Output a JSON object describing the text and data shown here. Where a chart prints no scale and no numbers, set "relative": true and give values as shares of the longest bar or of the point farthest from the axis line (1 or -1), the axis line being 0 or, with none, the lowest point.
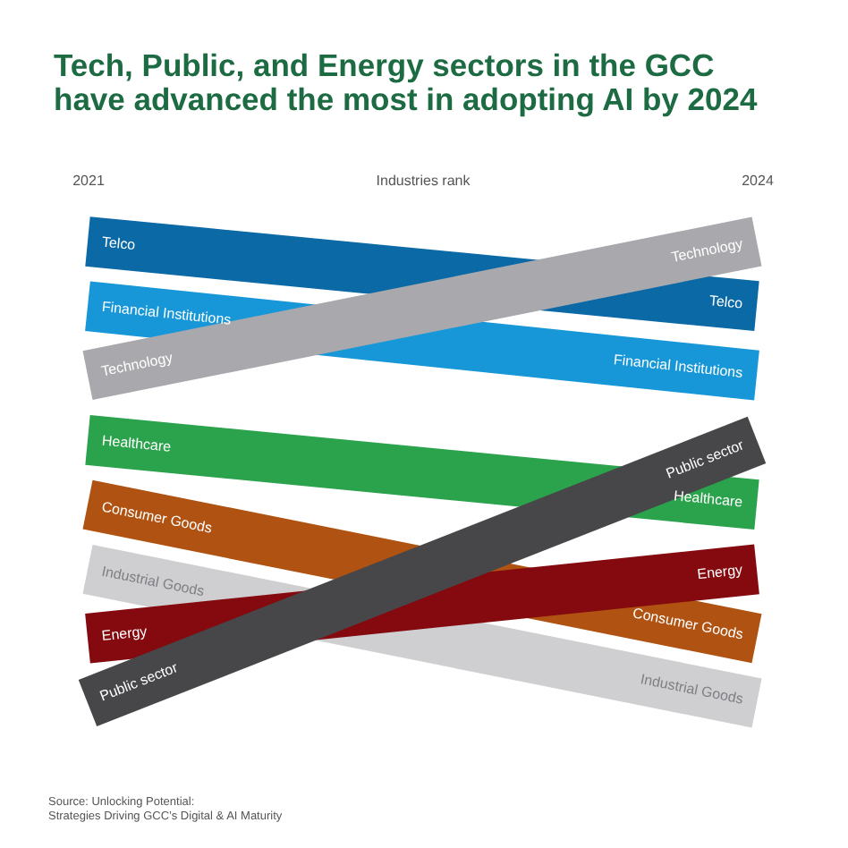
{
  "chart_data": {
    "type": "line",
    "title": "Tech, Public, and Energy sectors in the GCC have advanced the most in adopting AI by 2024",
    "xlabel": "Industries rank",
    "categories": [
      "2021",
      "2024"
    ],
    "relative": true,
    "tick_labels": "x",
    "legend": false,
    "grid": false,
    "line_style": "solid",
    "series": [
      {
        "name": "Telco",
        "color": "#0b69a6",
        "values": [
          1,
          0.86
        ]
      },
      {
        "name": "Financial Institutions",
        "color": "#1797d8",
        "values": [
          0.86,
          0.71
        ]
      },
      {
        "name": "Technology",
        "color": "#a9a9ad",
        "values": [
          0.71,
          1
        ]
      },
      {
        "name": "Healthcare",
        "color": "#2ba24c",
        "values": [
          0.57,
          0.43
        ]
      },
      {
        "name": "Consumer Goods",
        "color": "#b05312",
        "values": [
          0.43,
          0.14
        ]
      },
      {
        "name": "Industrial Goods",
        "color": "#cfcfd2",
        "values": [
          0.29,
          0
        ]
      },
      {
        "name": "Energy",
        "color": "#840a0f",
        "values": [
          0.14,
          0.29
        ]
      },
      {
        "name": "Public sector",
        "color": "#474749",
        "values": [
          0,
          0.57
        ]
      }
    ],
    "annotations": [
      "Source: Unlocking Potential:",
      "Strategies Driving GCC’s Digital & AI Maturity"
    ]
  }
}
